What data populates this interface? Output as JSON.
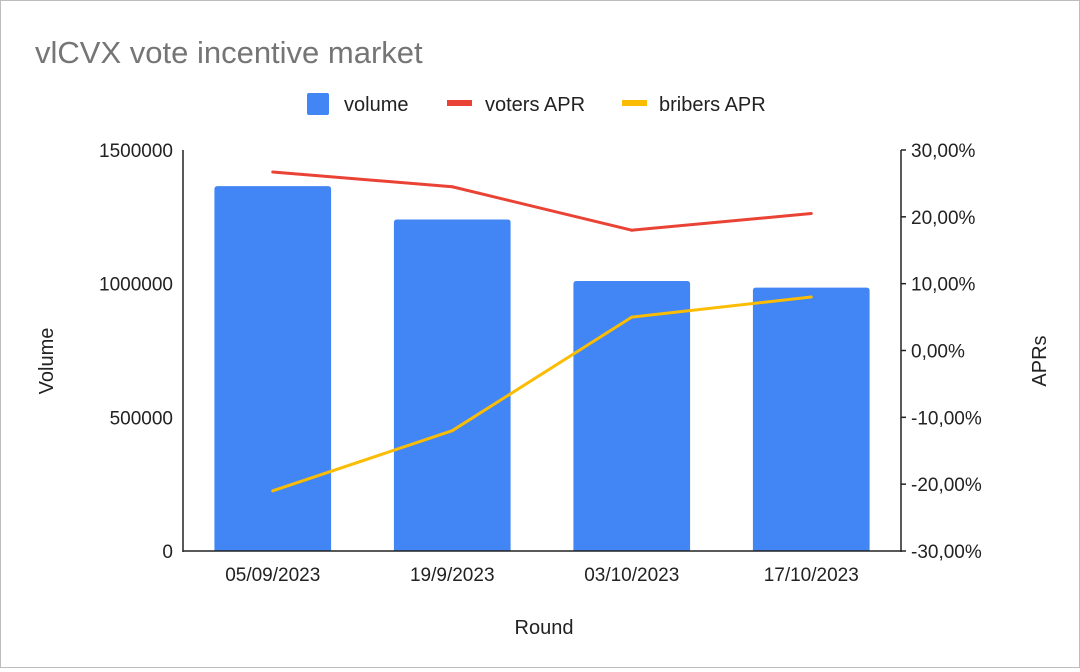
{
  "chart_data": {
    "type": "bar",
    "title": "vlCVX vote incentive market",
    "xlabel": "Round",
    "ylabel": "Volume",
    "y2label": "APRs",
    "categories": [
      "05/09/2023",
      "19/9/2023",
      "03/10/2023",
      "17/10/2023"
    ],
    "ylim": [
      0,
      1500000
    ],
    "yticks": [
      "0",
      "500000",
      "1000000",
      "1500000"
    ],
    "y2lim": [
      -0.3,
      0.3
    ],
    "y2ticks": [
      "-30,00%",
      "-20,00%",
      "-10,00%",
      "0,00%",
      "10,00%",
      "20,00%",
      "30,00%"
    ],
    "grid": false,
    "legend_position": "top",
    "series": [
      {
        "name": "volume",
        "type": "bar",
        "axis": "left",
        "color": "#4285F4",
        "values": [
          1365000,
          1240000,
          1010000,
          985000
        ]
      },
      {
        "name": "voters APR",
        "type": "line",
        "axis": "right",
        "color": "#EA4335",
        "values": [
          0.267,
          0.245,
          0.18,
          0.205
        ]
      },
      {
        "name": "bribers APR",
        "type": "line",
        "axis": "right",
        "color": "#FBBC04",
        "values": [
          -0.21,
          -0.12,
          0.05,
          0.08
        ]
      }
    ]
  }
}
